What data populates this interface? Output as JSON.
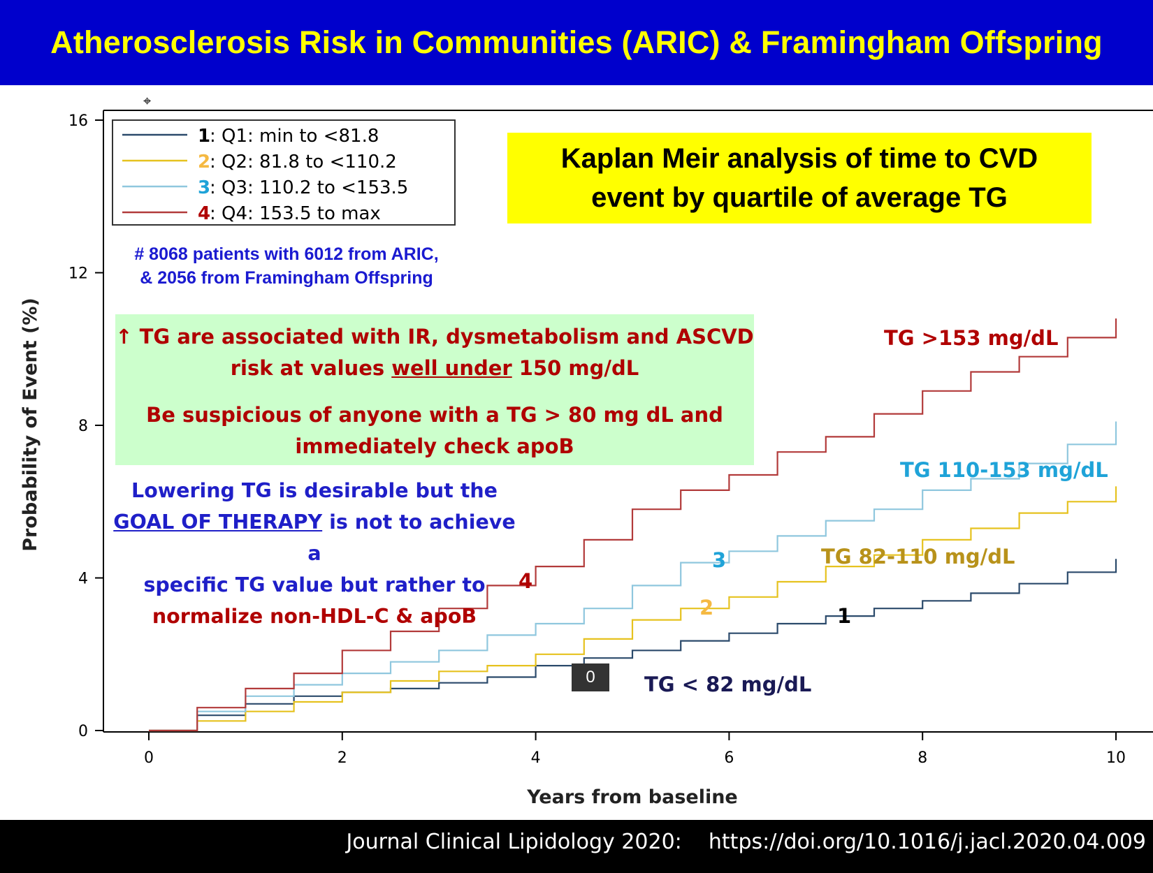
{
  "header": {
    "title": "Atherosclerosis Risk in Communities (ARIC) & Framingham Offspring"
  },
  "footer": {
    "citation": "Journal Clinical Lipidology 2020:    https://doi.org/10.1016/j.jacl.2020.04.009"
  },
  "annotations": {
    "km_title_line1": "Kaplan Meir analysis of time to CVD",
    "km_title_line2": "event by quartile of average TG",
    "patients_line1": "# 8068 patients with 6012 from ARIC,",
    "patients_line2": "& 2056 from Framingham Offspring",
    "green_p1_a": "↑ TG are associated with IR, dysmetabolism and ASCVD",
    "green_p1_b": "risk at values ",
    "green_p1_u": "well under",
    "green_p1_c": " 150 mg/dL",
    "green_p2_a": "Be suspicious of anyone with a TG > 80 mg dL and",
    "green_p2_b": "immediately check apoB",
    "lowering_1": "Lowering TG is desirable but the",
    "lowering_goal": "GOAL OF THERAPY",
    "lowering_2": " is not to achieve a",
    "lowering_3": "specific TG value but rather to",
    "lowering_4": "normalize non-HDL-C & apoB",
    "label_q4": "TG >153 mg/dL",
    "label_q3": "TG 110-153 mg/dL",
    "label_q2": "TG 82-110 mg/dL",
    "label_q1": "TG < 82 mg/dL",
    "num_4": "4",
    "num_3": "3",
    "num_2": "2",
    "num_1": "1",
    "zero_badge": "0"
  },
  "chart_data": {
    "type": "line",
    "title": "",
    "xlabel": "Years from baseline",
    "ylabel": "Probability of Event (%)",
    "xlim": [
      0,
      10
    ],
    "ylim": [
      0,
      16
    ],
    "xticks": [
      0,
      2,
      4,
      6,
      8,
      10
    ],
    "yticks": [
      0,
      4,
      8,
      12,
      16
    ],
    "legend": {
      "placement": "top-left",
      "entries": [
        {
          "num": "1",
          "text": ": Q1: min to <81.8",
          "num_color": "#000000"
        },
        {
          "num": "2",
          "text": ": Q2: 81.8 to <110.2",
          "num_color": "#f5b942"
        },
        {
          "num": "3",
          "text": ": Q3: 110.2 to <153.5",
          "num_color": "#1fa3d8"
        },
        {
          "num": "4",
          "text": ": Q4: 153.5 to max",
          "num_color": "#b00000"
        }
      ]
    },
    "series": [
      {
        "name": "1: Q1: min to <81.8",
        "color": "#2b4a6b",
        "x": [
          0,
          0.5,
          1,
          1.5,
          2,
          2.5,
          3,
          3.5,
          4,
          4.5,
          5,
          5.5,
          6,
          6.5,
          7,
          7.5,
          8,
          8.5,
          9,
          9.5,
          10
        ],
        "y": [
          0,
          0.4,
          0.7,
          0.9,
          1.0,
          1.1,
          1.25,
          1.4,
          1.7,
          1.9,
          2.1,
          2.35,
          2.55,
          2.8,
          3.0,
          3.2,
          3.4,
          3.6,
          3.85,
          4.15,
          4.5
        ]
      },
      {
        "name": "2: Q2: 81.8 to <110.2",
        "color": "#e6c21f",
        "x": [
          0,
          0.5,
          1,
          1.5,
          2,
          2.5,
          3,
          3.5,
          4,
          4.5,
          5,
          5.5,
          6,
          6.5,
          7,
          7.5,
          8,
          8.5,
          9,
          9.5,
          10
        ],
        "y": [
          0,
          0.25,
          0.5,
          0.75,
          1.0,
          1.3,
          1.55,
          1.7,
          2.0,
          2.4,
          2.9,
          3.2,
          3.5,
          3.9,
          4.3,
          4.6,
          5.0,
          5.3,
          5.7,
          6.0,
          6.4
        ]
      },
      {
        "name": "3: Q3: 110.2 to <153.5",
        "color": "#8fc7de",
        "x": [
          0,
          0.5,
          1,
          1.5,
          2,
          2.5,
          3,
          3.5,
          4,
          4.5,
          5,
          5.5,
          6,
          6.5,
          7,
          7.5,
          8,
          8.5,
          9,
          9.5,
          10
        ],
        "y": [
          0,
          0.5,
          0.9,
          1.2,
          1.5,
          1.8,
          2.1,
          2.5,
          2.8,
          3.2,
          3.8,
          4.4,
          4.7,
          5.1,
          5.5,
          5.8,
          6.3,
          6.6,
          7.0,
          7.5,
          8.1
        ]
      },
      {
        "name": "4: Q4: 153.5 to max",
        "color": "#b23a3a",
        "x": [
          0,
          0.5,
          1,
          1.5,
          2,
          2.5,
          3,
          3.5,
          4,
          4.5,
          5,
          5.5,
          6,
          6.5,
          7,
          7.5,
          8,
          8.5,
          9,
          9.5,
          10
        ],
        "y": [
          0,
          0.6,
          1.1,
          1.5,
          2.1,
          2.6,
          3.2,
          3.8,
          4.3,
          5.0,
          5.8,
          6.3,
          6.7,
          7.3,
          7.7,
          8.3,
          8.9,
          9.4,
          9.8,
          10.3,
          10.8
        ]
      }
    ]
  }
}
